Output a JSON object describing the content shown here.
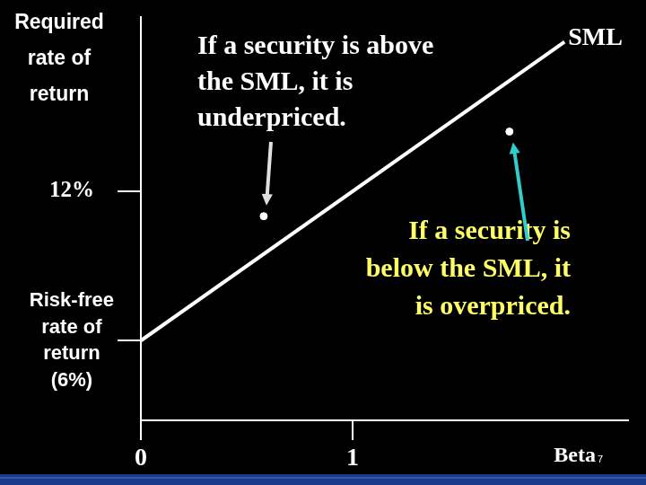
{
  "chart_data": {
    "type": "line",
    "y_label": [
      "Required",
      "rate of",
      "return"
    ],
    "x_label": "Beta",
    "slide_number": "7",
    "xlim": [
      0,
      2.3
    ],
    "xticks": [
      0,
      1
    ],
    "ylim": [
      2.8,
      19
    ],
    "yticks": [
      {
        "value": 6,
        "label": [
          "Risk-free",
          "rate of",
          "return",
          "(6%)"
        ]
      },
      {
        "value": 12,
        "label": "12%"
      }
    ],
    "grid": false,
    "series": [
      {
        "name": "SML",
        "type": "line",
        "color": "#ffffff",
        "x": [
          0,
          2
        ],
        "values": [
          6,
          18
        ]
      },
      {
        "type": "scatter",
        "color": "#ffffff",
        "x": [
          0.58,
          1.74
        ],
        "values": [
          11,
          14.4
        ]
      }
    ],
    "annotations": [
      {
        "lines": [
          "If a security is above",
          "the SML, it is",
          "underpriced."
        ],
        "color": "#ffffff"
      },
      {
        "lines": [
          "If a security is",
          "below the SML, it",
          "is overpriced."
        ],
        "color": "#ffff66"
      }
    ]
  }
}
